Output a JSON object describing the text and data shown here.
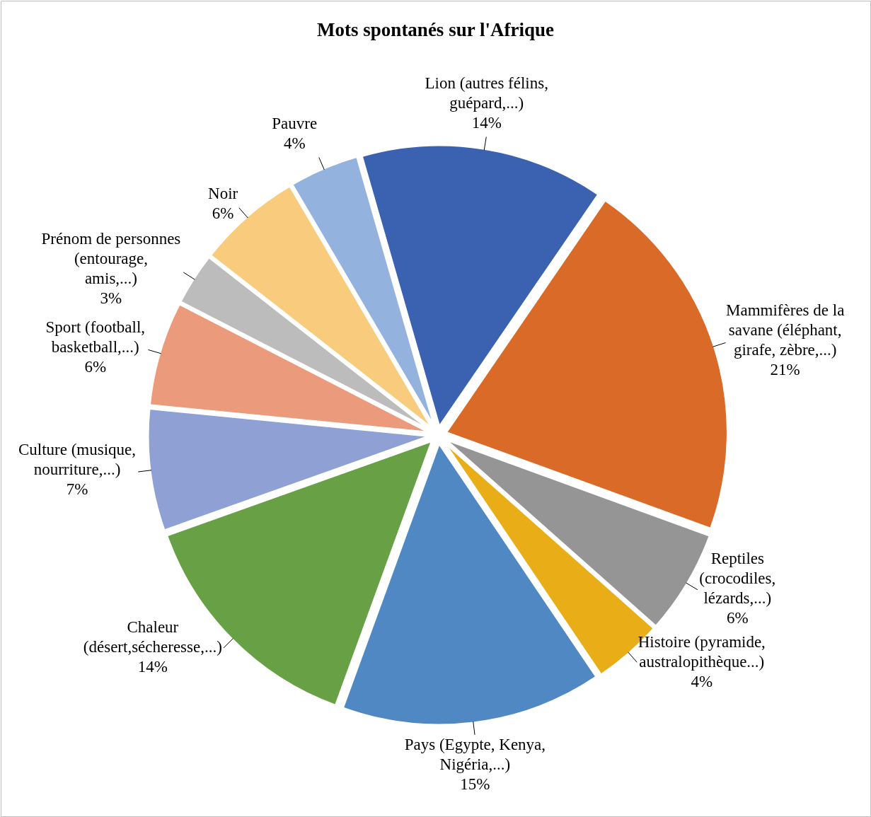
{
  "chart_data": {
    "type": "pie",
    "title": "Mots spontanés sur l'Afrique",
    "categories": [
      "Lion (autres félins, guépard,...)",
      "Mammifères de la savane (éléphant, girafe, zèbre,...)",
      "Reptiles (crocodiles, lézards,...)",
      "Histoire (pyramide, australopithèque...)",
      "Pays (Egypte, Kenya, Nigéria,...)",
      "Chaleur (désert,sécheresse,...)",
      "Culture (musique, nourriture,...)",
      "Sport (football, basketball,...)",
      "Prénom de personnes (entourage, amis,...)",
      "Noir",
      "Pauvre"
    ],
    "values": [
      14,
      21,
      6,
      4,
      15,
      14,
      7,
      6,
      3,
      6,
      4
    ],
    "value_labels": [
      "14%",
      "21%",
      "6%",
      "4%",
      "15%",
      "14%",
      "7%",
      "6%",
      "3%",
      "6%",
      "4%"
    ],
    "colors": [
      "#3a62b0",
      "#d96a28",
      "#959595",
      "#e9ad17",
      "#4f88c2",
      "#68a045",
      "#8fa0d5",
      "#eb9a7c",
      "#bcbcbc",
      "#f8cc7c",
      "#93b3de"
    ]
  }
}
